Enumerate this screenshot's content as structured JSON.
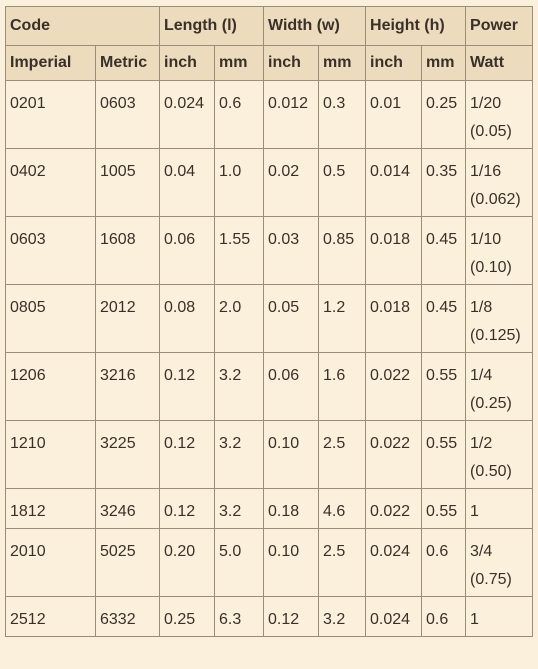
{
  "header": {
    "groups": [
      {
        "label": "Code",
        "span": 2
      },
      {
        "label": "Length (l)",
        "span": 2
      },
      {
        "label": "Width (w)",
        "span": 2
      },
      {
        "label": "Height (h)",
        "span": 2
      },
      {
        "label": "Power",
        "span": 1
      }
    ],
    "subheaders": [
      "Imperial",
      "Metric",
      "inch",
      "mm",
      "inch",
      "mm",
      "inch",
      "mm",
      "Watt"
    ]
  },
  "rows": [
    {
      "imperial": "0201",
      "metric": "0603",
      "len_in": "0.024",
      "len_mm": "0.6",
      "wid_in": "0.012",
      "wid_mm": "0.3",
      "hgt_in": "0.01",
      "hgt_mm": "0.25",
      "power": "1/20",
      "power_dec": "(0.05)"
    },
    {
      "imperial": "0402",
      "metric": "1005",
      "len_in": "0.04",
      "len_mm": "1.0",
      "wid_in": "0.02",
      "wid_mm": "0.5",
      "hgt_in": "0.014",
      "hgt_mm": "0.35",
      "power": "1/16",
      "power_dec": "(0.062)"
    },
    {
      "imperial": "0603",
      "metric": "1608",
      "len_in": "0.06",
      "len_mm": "1.55",
      "wid_in": "0.03",
      "wid_mm": "0.85",
      "hgt_in": "0.018",
      "hgt_mm": "0.45",
      "power": "1/10",
      "power_dec": "(0.10)"
    },
    {
      "imperial": "0805",
      "metric": "2012",
      "len_in": "0.08",
      "len_mm": "2.0",
      "wid_in": "0.05",
      "wid_mm": "1.2",
      "hgt_in": "0.018",
      "hgt_mm": "0.45",
      "power": "1/8",
      "power_dec": "(0.125)"
    },
    {
      "imperial": "1206",
      "metric": "3216",
      "len_in": "0.12",
      "len_mm": "3.2",
      "wid_in": "0.06",
      "wid_mm": "1.6",
      "hgt_in": "0.022",
      "hgt_mm": "0.55",
      "power": "1/4",
      "power_dec": "(0.25)"
    },
    {
      "imperial": "1210",
      "metric": "3225",
      "len_in": "0.12",
      "len_mm": "3.2",
      "wid_in": "0.10",
      "wid_mm": "2.5",
      "hgt_in": "0.022",
      "hgt_mm": "0.55",
      "power": "1/2",
      "power_dec": "(0.50)"
    },
    {
      "imperial": "1812",
      "metric": "3246",
      "len_in": "0.12",
      "len_mm": "3.2",
      "wid_in": "0.18",
      "wid_mm": "4.6",
      "hgt_in": "0.022",
      "hgt_mm": "0.55",
      "power": "1",
      "power_dec": ""
    },
    {
      "imperial": "2010",
      "metric": "5025",
      "len_in": "0.20",
      "len_mm": "5.0",
      "wid_in": "0.10",
      "wid_mm": "2.5",
      "hgt_in": "0.024",
      "hgt_mm": "0.6",
      "power": "3/4",
      "power_dec": "(0.75)"
    },
    {
      "imperial": "2512",
      "metric": "6332",
      "len_in": "0.25",
      "len_mm": "6.3",
      "wid_in": "0.12",
      "wid_mm": "3.2",
      "hgt_in": "0.024",
      "hgt_mm": "0.6",
      "power": "1",
      "power_dec": ""
    }
  ]
}
